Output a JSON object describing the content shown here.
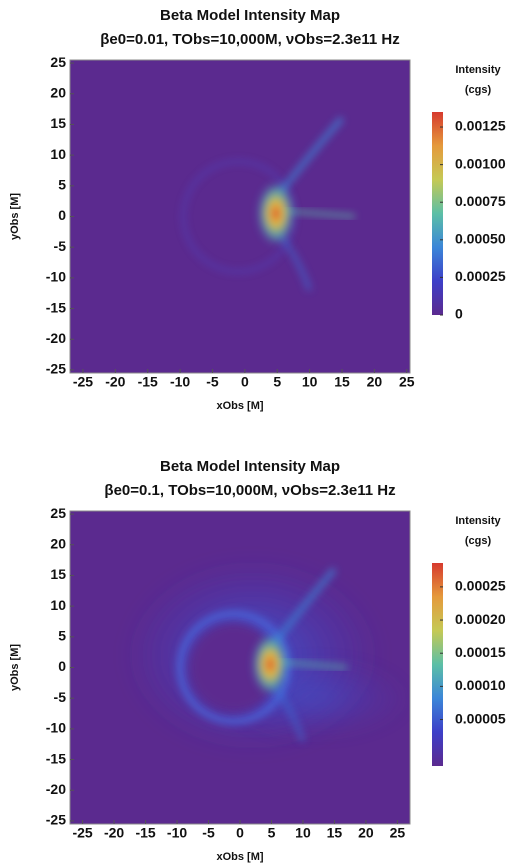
{
  "chart_data": [
    {
      "type": "heatmap",
      "title": "Beta Model Intensity Map",
      "subtitle": "βe0=0.01, TObs=10,000M, νObs=2.3e11 Hz",
      "xlabel": "xObs [M]",
      "ylabel": "yObs [M]",
      "colorbar_title": "Intensity",
      "colorbar_unit": "(cgs)",
      "xlim": [
        -27,
        25.5
      ],
      "ylim": [
        -25.5,
        25.5
      ],
      "xticks": [
        -25,
        -20,
        -15,
        -10,
        -5,
        0,
        5,
        10,
        15,
        20,
        25
      ],
      "yticks": [
        -25,
        -20,
        -15,
        -10,
        -5,
        0,
        5,
        10,
        15,
        20,
        25
      ],
      "clim": [
        0,
        0.00135
      ],
      "cticks": [
        0,
        {
          "value": 0.00025,
          "label": "0.00025"
        },
        {
          "value": 0.0005,
          "label": "0.00050"
        },
        {
          "value": 0.00075,
          "label": "0.00075"
        },
        {
          "value": 0.001,
          "label": "0.00100"
        },
        {
          "value": 0.00125,
          "label": "0.00125"
        }
      ],
      "colormap": [
        "#5b2a8f",
        "#3d3fc8",
        "#3b86d8",
        "#5cbfa6",
        "#c5c955",
        "#e59a3c",
        "#d63a2e"
      ]
    },
    {
      "type": "heatmap",
      "title": "Beta Model Intensity Map",
      "subtitle": "βe0=0.1, TObs=10,000M, νObs=2.3e11 Hz",
      "xlabel": "xObs [M]",
      "ylabel": "yObs [M]",
      "colorbar_title": "Intensity",
      "colorbar_unit": "(cgs)",
      "xlim": [
        -27,
        27
      ],
      "ylim": [
        -25.5,
        25.5
      ],
      "xticks": [
        -25,
        -20,
        -15,
        -10,
        -5,
        0,
        5,
        10,
        15,
        20,
        25
      ],
      "yticks": [
        -25,
        -20,
        -15,
        -10,
        -5,
        0,
        5,
        10,
        15,
        20,
        25
      ],
      "clim": [
        -2e-05,
        0.000286
      ],
      "cticks": [
        {
          "value": 5e-05,
          "label": "0.00005"
        },
        {
          "value": 0.0001,
          "label": "0.00010"
        },
        {
          "value": 0.00015,
          "label": "0.00015"
        },
        {
          "value": 0.0002,
          "label": "0.00020"
        },
        0.00025
      ],
      "colormap": [
        "#5b2a8f",
        "#3d3fc8",
        "#3b86d8",
        "#5cbfa6",
        "#c5c955",
        "#e59a3c",
        "#d63a2e"
      ]
    }
  ]
}
